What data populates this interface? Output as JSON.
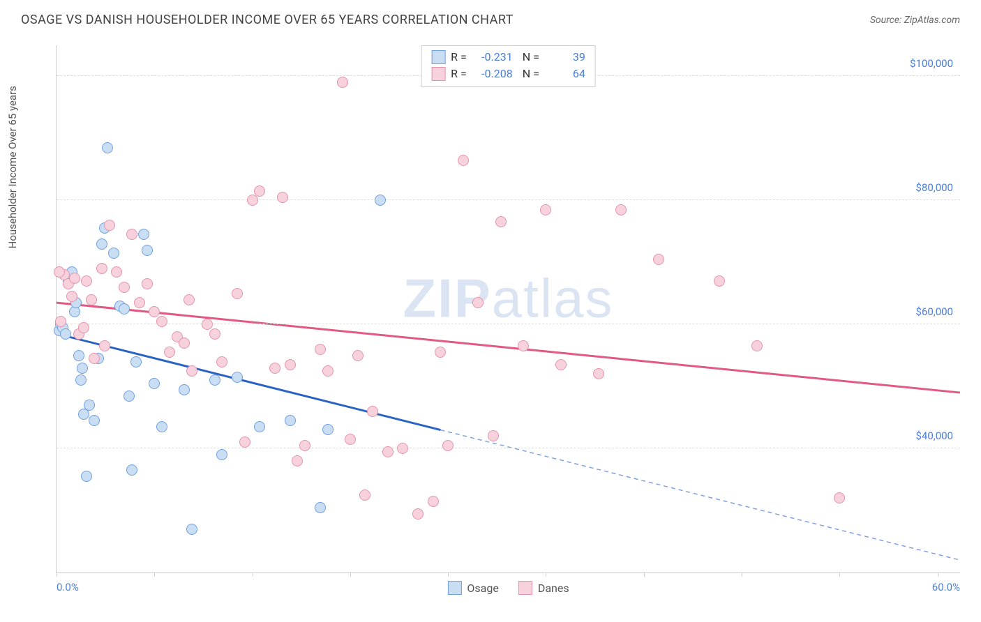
{
  "header": {
    "title": "OSAGE VS DANISH HOUSEHOLDER INCOME OVER 65 YEARS CORRELATION CHART",
    "source_prefix": "Source: ",
    "source_name": "ZipAtlas.com"
  },
  "chart": {
    "type": "scatter",
    "ylabel": "Householder Income Over 65 years",
    "xlim": [
      0,
      60
    ],
    "ylim": [
      20000,
      105000
    ],
    "x_min_label": "0.0%",
    "x_max_label": "60.0%",
    "y_ticks": [
      40000,
      60000,
      80000,
      100000
    ],
    "y_tick_labels": [
      "$40,000",
      "$60,000",
      "$80,000",
      "$100,000"
    ],
    "x_ticks": [
      0,
      6.5,
      13,
      19.5,
      26,
      32.5,
      39,
      45.5,
      52,
      58.5
    ],
    "grid_color": "#dddddd",
    "axis_color": "#cccccc",
    "tick_label_color": "#4a7fd8",
    "background_color": "#ffffff",
    "watermark": "ZIPatlas",
    "point_radius": 8,
    "point_border_width": 1.2,
    "series": [
      {
        "name": "Osage",
        "fill": "#c9ddf3",
        "stroke": "#6fa0e0",
        "line_color": "#2a63c4",
        "R": "-0.231",
        "N": "39",
        "trend": {
          "x1": 0,
          "y1": 58500,
          "x2": 60,
          "y2": 22000,
          "solid_until_x": 25.5
        },
        "points": [
          [
            0.2,
            59000
          ],
          [
            0.3,
            60000
          ],
          [
            0.4,
            59500
          ],
          [
            0.6,
            58500
          ],
          [
            0.8,
            67000
          ],
          [
            1.0,
            68500
          ],
          [
            1.2,
            62000
          ],
          [
            1.3,
            63500
          ],
          [
            1.5,
            55000
          ],
          [
            1.6,
            51000
          ],
          [
            1.7,
            53000
          ],
          [
            1.8,
            45500
          ],
          [
            2.0,
            35500
          ],
          [
            2.2,
            47000
          ],
          [
            2.5,
            44500
          ],
          [
            2.8,
            54500
          ],
          [
            3.0,
            73000
          ],
          [
            3.2,
            75500
          ],
          [
            3.4,
            88500
          ],
          [
            3.8,
            71500
          ],
          [
            4.2,
            63000
          ],
          [
            4.5,
            62500
          ],
          [
            4.8,
            48500
          ],
          [
            5.0,
            36500
          ],
          [
            5.3,
            54000
          ],
          [
            5.8,
            74500
          ],
          [
            6.0,
            72000
          ],
          [
            6.5,
            50500
          ],
          [
            7.0,
            43500
          ],
          [
            8.5,
            49500
          ],
          [
            9.0,
            27000
          ],
          [
            10.5,
            51000
          ],
          [
            11.0,
            39000
          ],
          [
            12.0,
            51500
          ],
          [
            13.5,
            43500
          ],
          [
            15.5,
            44500
          ],
          [
            17.5,
            30500
          ],
          [
            18.0,
            43000
          ],
          [
            21.5,
            80000
          ]
        ]
      },
      {
        "name": "Danes",
        "fill": "#f7d2dc",
        "stroke": "#e593ac",
        "line_color": "#e05a84",
        "R": "-0.208",
        "N": "64",
        "trend": {
          "x1": 0,
          "y1": 63500,
          "x2": 60,
          "y2": 49000,
          "solid_until_x": 60
        },
        "points": [
          [
            0.3,
            60500
          ],
          [
            0.5,
            68000
          ],
          [
            0.8,
            66500
          ],
          [
            1.0,
            64500
          ],
          [
            1.2,
            67500
          ],
          [
            1.5,
            58500
          ],
          [
            2.0,
            67000
          ],
          [
            2.3,
            64000
          ],
          [
            2.5,
            54500
          ],
          [
            3.0,
            69000
          ],
          [
            3.5,
            76000
          ],
          [
            4.0,
            68500
          ],
          [
            4.5,
            66000
          ],
          [
            5.0,
            74500
          ],
          [
            5.5,
            63500
          ],
          [
            6.0,
            66500
          ],
          [
            6.5,
            62000
          ],
          [
            7.0,
            60500
          ],
          [
            7.5,
            55500
          ],
          [
            8.0,
            58000
          ],
          [
            8.5,
            57000
          ],
          [
            9.0,
            52500
          ],
          [
            10.0,
            60000
          ],
          [
            10.5,
            58500
          ],
          [
            11.0,
            54000
          ],
          [
            12.0,
            65000
          ],
          [
            12.5,
            41000
          ],
          [
            13.0,
            80000
          ],
          [
            13.5,
            81500
          ],
          [
            14.5,
            53000
          ],
          [
            15.0,
            80500
          ],
          [
            15.5,
            53500
          ],
          [
            16.0,
            38000
          ],
          [
            16.5,
            40500
          ],
          [
            17.5,
            56000
          ],
          [
            18.0,
            52500
          ],
          [
            19.0,
            99000
          ],
          [
            19.5,
            41500
          ],
          [
            20.0,
            55000
          ],
          [
            20.5,
            32500
          ],
          [
            21.0,
            46000
          ],
          [
            22.0,
            39500
          ],
          [
            23.0,
            40000
          ],
          [
            24.0,
            29500
          ],
          [
            25.0,
            31500
          ],
          [
            25.5,
            55500
          ],
          [
            26.0,
            40500
          ],
          [
            27.0,
            86500
          ],
          [
            28.0,
            63500
          ],
          [
            29.0,
            42000
          ],
          [
            29.5,
            76500
          ],
          [
            31.0,
            56500
          ],
          [
            32.5,
            78500
          ],
          [
            33.5,
            53500
          ],
          [
            36.0,
            52000
          ],
          [
            37.5,
            78500
          ],
          [
            40.0,
            70500
          ],
          [
            44.0,
            67000
          ],
          [
            46.5,
            56500
          ],
          [
            52.0,
            32000
          ],
          [
            0.2,
            68500
          ],
          [
            1.8,
            59500
          ],
          [
            3.2,
            56500
          ],
          [
            8.8,
            64000
          ]
        ]
      }
    ],
    "legend_top": {
      "border_color": "#cccccc",
      "r_label": "R =",
      "n_label": "N ="
    },
    "legend_bottom": [
      {
        "label": "Osage",
        "fill": "#c9ddf3",
        "stroke": "#6fa0e0"
      },
      {
        "label": "Danes",
        "fill": "#f7d2dc",
        "stroke": "#e593ac"
      }
    ]
  }
}
